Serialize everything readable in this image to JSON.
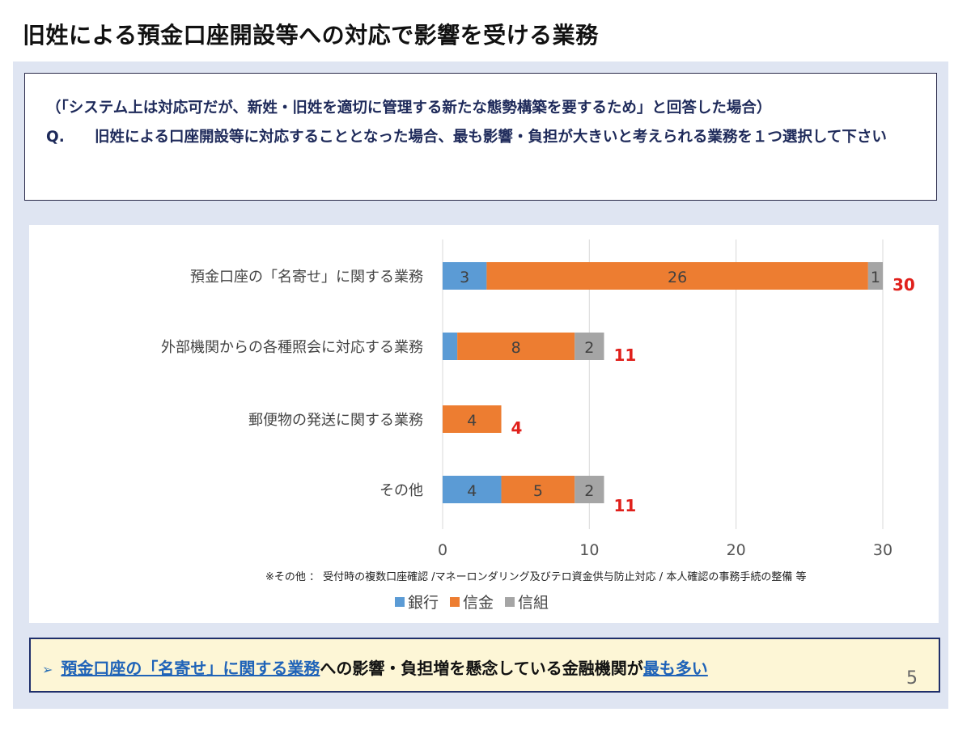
{
  "page": {
    "title": "旧姓による預金口座開設等への対応で影響を受ける業務",
    "subtitle": "（「システム上は対応可だが、新姓・旧姓を適切に管理する新たな態勢構築を要するため」と回答した場合）",
    "question_label": "Q.",
    "question_text": "旧姓による口座開設等に対応することとなった場合、最も影響・負担が大きいと考えられる業務を１つ選択して下さい",
    "footnote": "※その他 ： 受付時の複数口座確認 /マネーロンダリング及びテロ資金供与防止対応 / 本人確認の事務手続の整備 等",
    "conclusion": {
      "arrow": "➢",
      "highlight": "預金口座の「名寄せ」に関する業務",
      "middle": "への影響・負担増を懸念している金融機関が",
      "emphasis": "最も多い"
    },
    "page_number": "5"
  },
  "colors": {
    "bank": "#5b9bd5",
    "shinkin": "#ed7d31",
    "shinkumi": "#a5a5a5",
    "total_label": "#e0201b",
    "title_text": "#1e2a5a",
    "highlight": "#1f63b8"
  },
  "chart_data": {
    "type": "bar",
    "orientation": "horizontal",
    "stacked": true,
    "categories": [
      "預金口座の「名寄せ」に関する業務",
      "外部機関からの各種照会に対応する業務",
      "郵便物の発送に関する業務",
      "その他"
    ],
    "series": [
      {
        "name": "銀行",
        "values": [
          3,
          1,
          0,
          4
        ],
        "labels": [
          "3",
          "",
          "",
          "4"
        ]
      },
      {
        "name": "信金",
        "values": [
          26,
          8,
          4,
          5
        ],
        "labels": [
          "26",
          "8",
          "4",
          "5"
        ]
      },
      {
        "name": "信組",
        "values": [
          1,
          2,
          0,
          2
        ],
        "labels": [
          "1",
          "2",
          "",
          "2"
        ]
      }
    ],
    "totals": [
      30,
      11,
      4,
      11
    ],
    "xlim": [
      0,
      30
    ],
    "xticks": [
      0,
      10,
      20,
      30
    ],
    "grid": true,
    "legend": "bottom"
  }
}
